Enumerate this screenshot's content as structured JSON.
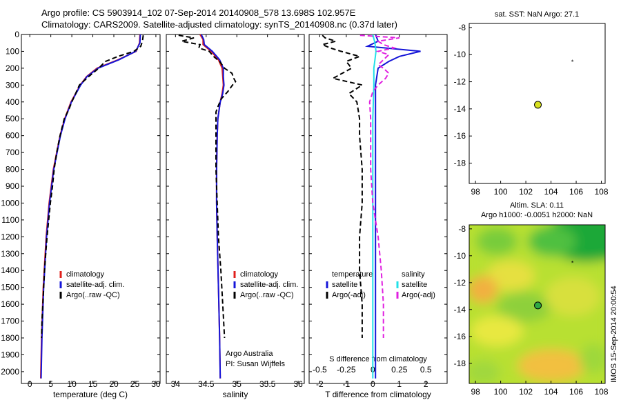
{
  "header": {
    "line1": "Argo profile: CS 5903914_102 07-Sep-2014 20140908_578 13.698S 102.957E",
    "line2": "Climatology: CARS2009. Satellite-adjusted climatology: synTS_20140908.nc (0.37d later)"
  },
  "colors": {
    "climatology": "#e0201c",
    "satellite": "#1515d8",
    "argo": "#000000",
    "sal_satellite": "#22e0e8",
    "sal_argo": "#e020e0"
  },
  "depth_ticks": [
    "0",
    "100",
    "200",
    "300",
    "400",
    "500",
    "600",
    "700",
    "800",
    "900",
    "1000",
    "1100",
    "1200",
    "1300",
    "1400",
    "1500",
    "1600",
    "1700",
    "1800",
    "1900",
    "2000"
  ],
  "chart_data": [
    {
      "type": "line",
      "panel": "temperature",
      "xlabel": "temperature (deg C)",
      "ylabel": "",
      "xlim": [
        -2,
        31
      ],
      "ylim": [
        2070,
        0
      ],
      "xticks": [
        "0",
        "5",
        "10",
        "15",
        "20",
        "25",
        "30"
      ],
      "legend": [
        "climatology",
        "satellite-adj. clim.",
        "Argo(..raw -QC)"
      ],
      "legend_position": "lower-center",
      "series": [
        {
          "name": "climatology",
          "depth": [
            0,
            50,
            100,
            150,
            200,
            250,
            300,
            400,
            500,
            600,
            800,
            1000,
            1200,
            1500,
            1800,
            2040
          ],
          "values": [
            26.2,
            26.1,
            25.3,
            21.0,
            16.0,
            13.5,
            12.0,
            9.8,
            8.3,
            7.2,
            5.6,
            4.6,
            3.9,
            3.2,
            2.8,
            2.6
          ]
        },
        {
          "name": "satellite-adj. clim.",
          "depth": [
            0,
            50,
            100,
            150,
            200,
            250,
            300,
            400,
            500,
            600,
            800,
            1000,
            1200,
            1500,
            1800,
            2040
          ],
          "values": [
            26.3,
            26.2,
            25.2,
            21.2,
            16.2,
            13.6,
            12.1,
            9.9,
            8.4,
            7.3,
            5.7,
            4.7,
            4.0,
            3.3,
            2.9,
            2.7
          ]
        },
        {
          "name": "Argo(..raw -QC)",
          "depth": [
            5,
            40,
            70,
            100,
            130,
            160,
            200,
            250,
            300,
            350,
            400,
            450,
            500,
            600,
            700,
            800,
            900,
            1000,
            1100,
            1200,
            1300,
            1400,
            1500,
            1600,
            1700,
            1800
          ],
          "values": [
            27.0,
            26.8,
            26.4,
            24.8,
            21.0,
            18.0,
            16.4,
            14.0,
            11.8,
            10.9,
            10.0,
            9.2,
            8.2,
            7.2,
            6.4,
            5.8,
            5.4,
            4.9,
            4.5,
            4.1,
            3.8,
            3.5,
            3.3,
            3.1,
            2.9,
            2.8
          ]
        }
      ]
    },
    {
      "type": "line",
      "panel": "salinity",
      "xlabel": "salinity",
      "ylabel": "",
      "xlim": [
        33.85,
        36.1
      ],
      "ylim": [
        2070,
        0
      ],
      "xticks": [
        "34",
        "34.5",
        "35",
        "35.5",
        "36"
      ],
      "legend": [
        "climatology",
        "satellite-adj. clim.",
        "Argo(..raw -QC)"
      ],
      "legend_position": "lower-right",
      "annotations": [
        "Argo Australia",
        "PI: Susan Wijffels"
      ],
      "series": [
        {
          "name": "climatology",
          "depth": [
            0,
            30,
            60,
            100,
            150,
            200,
            250,
            300,
            350,
            400,
            500,
            600,
            800,
            1000,
            1200,
            1500,
            1800,
            2040
          ],
          "values": [
            34.4,
            34.45,
            34.45,
            34.58,
            34.7,
            34.76,
            34.77,
            34.78,
            34.76,
            34.73,
            34.69,
            34.68,
            34.67,
            34.67,
            34.68,
            34.7,
            34.72,
            34.73
          ]
        },
        {
          "name": "satellite-adj. clim.",
          "depth": [
            0,
            30,
            60,
            100,
            150,
            200,
            250,
            300,
            350,
            400,
            500,
            600,
            800,
            1000,
            1200,
            1500,
            1800,
            2040
          ],
          "values": [
            34.42,
            34.46,
            34.47,
            34.6,
            34.72,
            34.78,
            34.78,
            34.79,
            34.77,
            34.73,
            34.69,
            34.68,
            34.67,
            34.67,
            34.68,
            34.7,
            34.72,
            34.73
          ]
        },
        {
          "name": "Argo(..raw -QC)",
          "depth": [
            5,
            20,
            40,
            60,
            80,
            100,
            130,
            160,
            200,
            230,
            260,
            280,
            300,
            340,
            380,
            420,
            460,
            500,
            600,
            800,
            1000,
            1200,
            1400,
            1600,
            1800
          ],
          "values": [
            34.05,
            34.3,
            34.1,
            34.4,
            34.38,
            34.55,
            34.62,
            34.72,
            34.8,
            34.92,
            34.95,
            34.98,
            34.93,
            34.85,
            34.75,
            34.7,
            34.66,
            34.66,
            34.66,
            34.66,
            34.68,
            34.7,
            34.74,
            34.77,
            34.8
          ]
        }
      ]
    },
    {
      "type": "line",
      "panel": "difference",
      "xlabel": "T difference from climatology",
      "top_label": "S difference from climatology",
      "ylabel": "",
      "xlim": [
        -2.4,
        2.8
      ],
      "ylim": [
        2070,
        0
      ],
      "xticks": [
        "-2",
        "-1",
        "0",
        "1",
        "2"
      ],
      "xticks_top": [
        "-0.5",
        "-0.25",
        "0",
        "0.25",
        "0.5"
      ],
      "legend_left_title": "temperature",
      "legend_right_title": "salinity",
      "legend_left": [
        "satellite",
        "Argo(-adj)"
      ],
      "legend_right": [
        "satellite",
        "Argo(-adj)"
      ],
      "series": [
        {
          "name": "temperature satellite",
          "depth": [
            0,
            40,
            70,
            100,
            130,
            160,
            200,
            300,
            500,
            800,
            1200,
            1600,
            2040
          ],
          "values": [
            0.1,
            0.2,
            -0.2,
            1.8,
            1.0,
            0.6,
            0.2,
            0.1,
            0.1,
            0.1,
            0.1,
            0.1,
            0.1
          ]
        },
        {
          "name": "temperature Argo(-adj)",
          "depth": [
            5,
            20,
            40,
            60,
            80,
            100,
            130,
            160,
            200,
            260,
            300,
            350,
            400,
            500,
            600,
            800,
            1000,
            1200,
            1400,
            1600,
            1800
          ],
          "values": [
            -1.9,
            -1.8,
            -1.4,
            -1.9,
            -1.6,
            -1.2,
            -0.5,
            -1.0,
            -0.8,
            -1.5,
            -0.4,
            -0.9,
            -0.6,
            -0.5,
            -0.5,
            -0.4,
            -0.4,
            -0.5,
            -0.5,
            -0.4,
            -0.4
          ]
        },
        {
          "name": "salinity satellite",
          "depth": [
            0,
            50,
            100,
            150,
            200,
            300,
            500,
            800,
            1200,
            1600,
            2040
          ],
          "values": [
            0.0,
            0.02,
            0.03,
            0.02,
            0.01,
            0.01,
            0.0,
            0.0,
            0.0,
            0.0,
            0.0
          ]
        },
        {
          "name": "salinity Argo(-adj)",
          "depth": [
            5,
            20,
            40,
            60,
            80,
            100,
            120,
            150,
            180,
            200,
            230,
            260,
            300,
            340,
            400,
            500,
            600,
            800,
            1000,
            1200,
            1400,
            1600,
            1800
          ],
          "values": [
            -0.12,
            0.25,
            0.05,
            0.1,
            0.2,
            0.05,
            0.15,
            0.1,
            0.05,
            0.1,
            0.15,
            0.12,
            0.05,
            0.0,
            -0.03,
            -0.02,
            -0.02,
            -0.02,
            0.0,
            0.05,
            0.08,
            0.1,
            0.1
          ]
        }
      ]
    },
    {
      "type": "scatter",
      "panel": "sat-sst-map",
      "title": "sat. SST: NaN Argo: 27.1",
      "xlim": [
        97.5,
        108.3
      ],
      "ylim": [
        -19.5,
        -7.7
      ],
      "xticks": [
        "98",
        "100",
        "102",
        "104",
        "106",
        "108"
      ],
      "yticks": [
        "-8",
        "-10",
        "-12",
        "-14",
        "-16",
        "-18"
      ],
      "points": [
        {
          "x": 102.957,
          "y": -13.698,
          "marker": "filled-circle"
        },
        {
          "x": 105.7,
          "y": -10.5,
          "marker": "star"
        }
      ]
    },
    {
      "type": "heatmap",
      "panel": "altim-sla-map",
      "title_line1": "Altim. SLA: 0.11",
      "title_line2": "Argo h1000: -0.0051 h2000: NaN",
      "xlim": [
        97.5,
        108.3
      ],
      "ylim": [
        -19.5,
        -7.7
      ],
      "xticks": [
        "98",
        "100",
        "102",
        "104",
        "106",
        "108"
      ],
      "yticks": [
        "-8",
        "-10",
        "-12",
        "-14",
        "-16",
        "-18"
      ],
      "points": [
        {
          "x": 102.957,
          "y": -13.698,
          "marker": "filled-circle"
        },
        {
          "x": 105.7,
          "y": -10.5,
          "marker": "star"
        }
      ]
    }
  ],
  "side_label": "IMOS 15-Sep-2014 20:00:54"
}
